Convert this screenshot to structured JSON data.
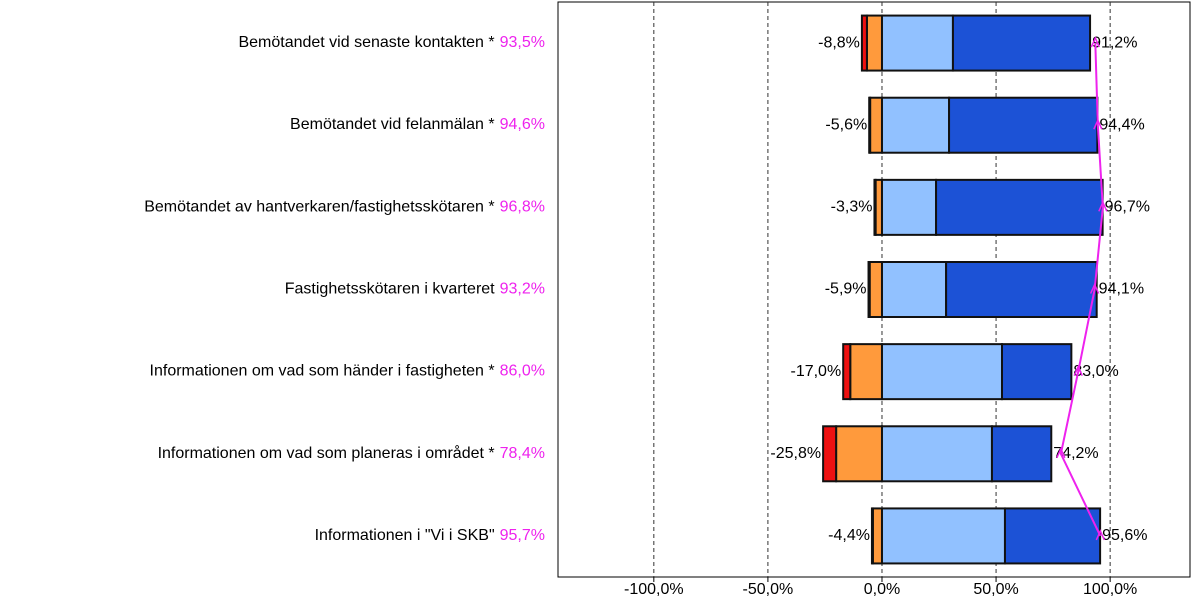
{
  "chart_data": {
    "type": "diverging-bar",
    "categories": [
      "Bemötandet vid senaste kontakten *",
      "Bemötandet vid felanmälan *",
      "Bemötandet av hantverkaren/fastighetsskötaren *",
      "Fastighetsskötaren i kvarteret",
      "Informationen om vad som händer i fastigheten *",
      "Informationen om vad som planeras i området *",
      "Informationen i \"Vi i SKB\""
    ],
    "series": [
      {
        "color": "#ff9a3c",
        "values": [
          -6.6,
          -5.2,
          -2.8,
          -5.4,
          -13.9,
          -20.1,
          -4.0
        ]
      },
      {
        "color": "#ee1111",
        "values": [
          -2.2,
          -0.4,
          -0.5,
          -0.5,
          -3.1,
          -5.7,
          -0.4
        ]
      },
      {
        "color": "#91c1ff",
        "values": [
          31.1,
          29.4,
          23.7,
          28.1,
          52.6,
          48.2,
          53.9
        ]
      },
      {
        "color": "#1c52d6",
        "values": [
          60.1,
          65.0,
          73.0,
          66.0,
          30.4,
          26.0,
          41.7
        ]
      }
    ],
    "negative_totals": {
      "values": [
        -8.8,
        -5.6,
        -3.3,
        -5.9,
        -17.0,
        -25.8,
        -4.4
      ],
      "value_labels": [
        "-8,8%",
        "-5,6%",
        "-3,3%",
        "-5,9%",
        "-17,0%",
        "-25,8%",
        "-4,4%"
      ]
    },
    "positive_totals": {
      "values": [
        91.2,
        94.4,
        96.7,
        94.1,
        83.0,
        74.2,
        95.6
      ],
      "value_labels": [
        "91,2%",
        "94,4%",
        "96,7%",
        "94,1%",
        "83,0%",
        "74,2%",
        "95,6%"
      ]
    },
    "index": {
      "color": "#ee22ee",
      "values": [
        93.5,
        94.6,
        96.8,
        93.2,
        86.0,
        78.4,
        95.7
      ],
      "value_labels": [
        "93,5%",
        "94,6%",
        "96,8%",
        "93,2%",
        "86,0%",
        "78,4%",
        "95,7%"
      ]
    },
    "xlim": [
      -142,
      135
    ],
    "xticks": [
      {
        "value": -100,
        "label": "-100,0%"
      },
      {
        "value": -50,
        "label": "-50,0%"
      },
      {
        "value": 0,
        "label": "0,0%"
      },
      {
        "value": 50,
        "label": "50,0%"
      },
      {
        "value": 100,
        "label": "100,0%"
      }
    ],
    "grid": true
  }
}
